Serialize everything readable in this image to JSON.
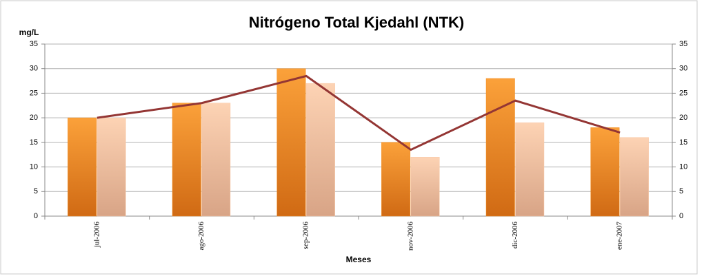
{
  "chart_data": {
    "type": "bar",
    "title": "Nitrógeno Total Kjedahl (NTK)",
    "ylabel": "mg/L",
    "xlabel": "Meses",
    "categories": [
      "jul-2006",
      "ago-2006",
      "sep-2006",
      "nov-2006",
      "dic-2006",
      "ene-2007"
    ],
    "series": [
      {
        "color": "#f28c1e",
        "values": [
          20,
          23,
          30,
          15,
          28,
          18
        ]
      },
      {
        "color": "#f9c8a4",
        "values": [
          20,
          23,
          27,
          12,
          19,
          16
        ]
      },
      {
        "type": "line",
        "axis": "y2",
        "color": "#943634",
        "values": [
          20,
          23,
          28.5,
          13.5,
          23.5,
          17
        ]
      }
    ],
    "ylim": [
      0,
      35
    ],
    "yticks": [
      0,
      5,
      10,
      15,
      20,
      25,
      30,
      35
    ],
    "y2lim": [
      0,
      35
    ],
    "y2ticks": [
      0,
      5,
      10,
      15,
      20,
      25,
      30,
      35
    ],
    "grid": true
  }
}
